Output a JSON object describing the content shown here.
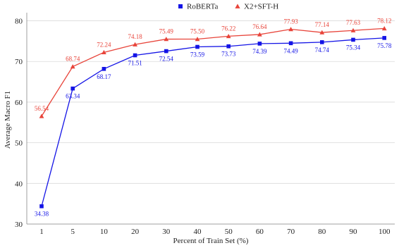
{
  "chart_data": {
    "type": "line",
    "title": "",
    "xlabel": "Percent of Train Set (%)",
    "ylabel": "Average Macro F1",
    "categories": [
      "1",
      "5",
      "10",
      "20",
      "30",
      "40",
      "50",
      "60",
      "70",
      "80",
      "90",
      "100"
    ],
    "ylim": [
      30,
      82
    ],
    "yticks": [
      30,
      40,
      50,
      60,
      70,
      80
    ],
    "grid": "horizontal",
    "legend_position": "top-center",
    "series": [
      {
        "name": "RoBERTa",
        "color": "#1414e6",
        "marker": "square",
        "values": [
          34.38,
          63.34,
          68.17,
          71.51,
          72.54,
          73.59,
          73.73,
          74.39,
          74.49,
          74.74,
          75.34,
          75.78
        ],
        "labels": [
          "34.38",
          "63.34",
          "68.17",
          "71.51",
          "72.54",
          "73.59",
          "73.73",
          "74.39",
          "74.49",
          "74.74",
          "75.34",
          "75.78"
        ]
      },
      {
        "name": "X2+SFT-H",
        "color": "#e8443a",
        "marker": "triangle",
        "values": [
          56.54,
          68.74,
          72.24,
          74.18,
          75.49,
          75.5,
          76.22,
          76.64,
          77.93,
          77.14,
          77.63,
          78.12
        ],
        "labels": [
          "56.54",
          "68.74",
          "72.24",
          "74.18",
          "75.49",
          "75.50",
          "76.22",
          "76.64",
          "77.93",
          "77.14",
          "77.63",
          "78.12"
        ]
      }
    ]
  }
}
